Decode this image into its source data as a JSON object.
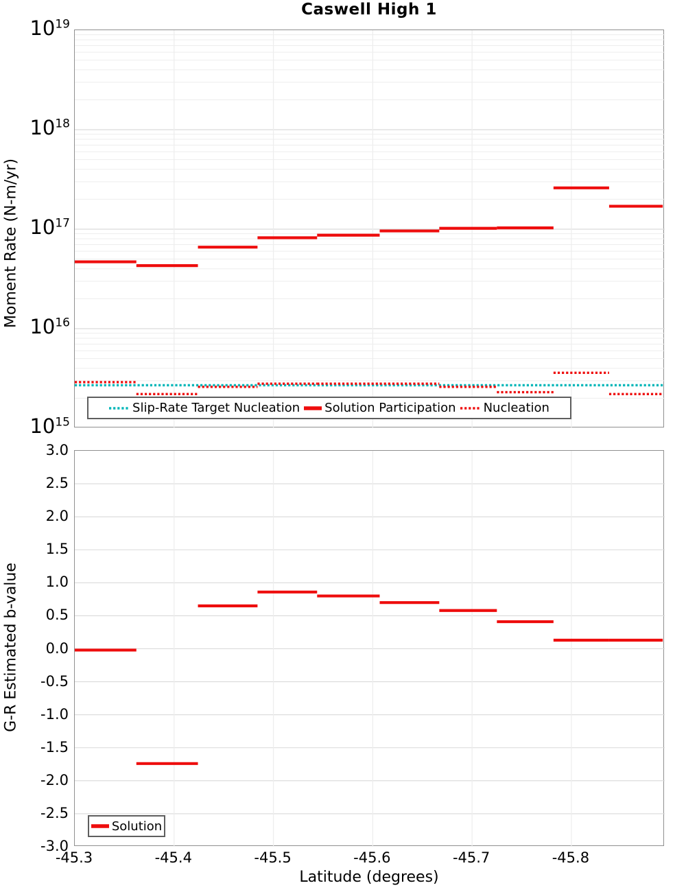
{
  "colors": {
    "solution_red": "#ee0d0d",
    "target_teal": "#00b6b8",
    "grid_minor": "#ededed",
    "grid_major": "#d9d9d9",
    "spine": "#8f8f8f"
  },
  "x_axis": {
    "label": "Latitude (degrees)",
    "tick_values": [
      -45.3,
      -45.4,
      -45.5,
      -45.6,
      -45.7,
      -45.8
    ],
    "tick_labels": [
      "-45.3",
      "-45.4",
      "-45.5",
      "-45.6",
      "-45.7",
      "-45.8"
    ],
    "range": [
      -45.3,
      -45.894
    ]
  },
  "chart_data": [
    {
      "type": "line",
      "title": "Caswell High 1",
      "ylabel": "Moment Rate (N-m/yr)",
      "yscale": "log",
      "ylim": [
        1000000000000000.0,
        1e+19
      ],
      "y_tick_exponents": [
        19,
        18,
        17,
        16,
        15
      ],
      "xlabel": "Latitude (degrees)",
      "xlim": [
        -45.3,
        -45.894
      ],
      "grid": true,
      "legend_position": "inside-bottom",
      "series": [
        {
          "name": "Slip-Rate Target Nucleation",
          "color": "#00b6b8",
          "style": "dotted",
          "segments": [
            [
              -45.3,
              -45.894,
              2700000000000000.0
            ]
          ]
        },
        {
          "name": "Solution Participation",
          "color": "#ee0d0d",
          "style": "solid",
          "segments": [
            [
              -45.3,
              -45.362,
              4.7e+16
            ],
            [
              -45.362,
              -45.424,
              4.3e+16
            ],
            [
              -45.424,
              -45.484,
              6.6e+16
            ],
            [
              -45.484,
              -45.544,
              8.2e+16
            ],
            [
              -45.544,
              -45.607,
              8.7e+16
            ],
            [
              -45.607,
              -45.667,
              9.6e+16
            ],
            [
              -45.667,
              -45.725,
              1.02e+17
            ],
            [
              -45.725,
              -45.782,
              1.03e+17
            ],
            [
              -45.782,
              -45.838,
              2.6e+17
            ],
            [
              -45.838,
              -45.892,
              1.7e+17
            ]
          ]
        },
        {
          "name": "Nucleation",
          "color": "#ee0d0d",
          "style": "dotted",
          "segments": [
            [
              -45.3,
              -45.362,
              2900000000000000.0
            ],
            [
              -45.362,
              -45.424,
              2200000000000000.0
            ],
            [
              -45.424,
              -45.484,
              2600000000000000.0
            ],
            [
              -45.484,
              -45.544,
              2800000000000000.0
            ],
            [
              -45.544,
              -45.607,
              2800000000000000.0
            ],
            [
              -45.607,
              -45.667,
              2800000000000000.0
            ],
            [
              -45.667,
              -45.725,
              2600000000000000.0
            ],
            [
              -45.725,
              -45.782,
              2300000000000000.0
            ],
            [
              -45.782,
              -45.838,
              3600000000000000.0
            ],
            [
              -45.838,
              -45.892,
              2200000000000000.0
            ]
          ]
        }
      ],
      "legend": [
        {
          "label": "Slip-Rate Target Nucleation",
          "color": "#00b6b8",
          "style": "dotted"
        },
        {
          "label": "Solution Participation",
          "color": "#ee0d0d",
          "style": "solid"
        },
        {
          "label": "Nucleation",
          "color": "#ee0d0d",
          "style": "dotted"
        }
      ]
    },
    {
      "type": "line",
      "ylabel": "G-R Estimated b-value",
      "ylim": [
        -3,
        3
      ],
      "y_ticks": [
        3.0,
        2.5,
        2.0,
        1.5,
        1.0,
        0.5,
        0.0,
        -0.5,
        -1.0,
        -1.5,
        -2.0,
        -2.5,
        -3.0
      ],
      "y_tick_labels": [
        "3.0",
        "2.5",
        "2.0",
        "1.5",
        "1.0",
        "0.5",
        "0.0",
        "-0.5",
        "-1.0",
        "-1.5",
        "-2.0",
        "-2.5",
        "-3.0"
      ],
      "xlabel": "Latitude (degrees)",
      "xlim": [
        -45.3,
        -45.894
      ],
      "grid": true,
      "legend_position": "inside-bottom-left",
      "series": [
        {
          "name": "Solution",
          "color": "#ee0d0d",
          "style": "solid",
          "segments": [
            [
              -45.3,
              -45.362,
              -0.02
            ],
            [
              -45.362,
              -45.424,
              -1.74
            ],
            [
              -45.424,
              -45.484,
              0.65
            ],
            [
              -45.484,
              -45.544,
              0.86
            ],
            [
              -45.544,
              -45.607,
              0.8
            ],
            [
              -45.607,
              -45.667,
              0.7
            ],
            [
              -45.667,
              -45.725,
              0.58
            ],
            [
              -45.725,
              -45.782,
              0.41
            ],
            [
              -45.782,
              -45.838,
              0.13
            ],
            [
              -45.838,
              -45.892,
              0.13
            ]
          ]
        }
      ],
      "legend": [
        {
          "label": "Solution",
          "color": "#ee0d0d",
          "style": "solid"
        }
      ]
    }
  ]
}
